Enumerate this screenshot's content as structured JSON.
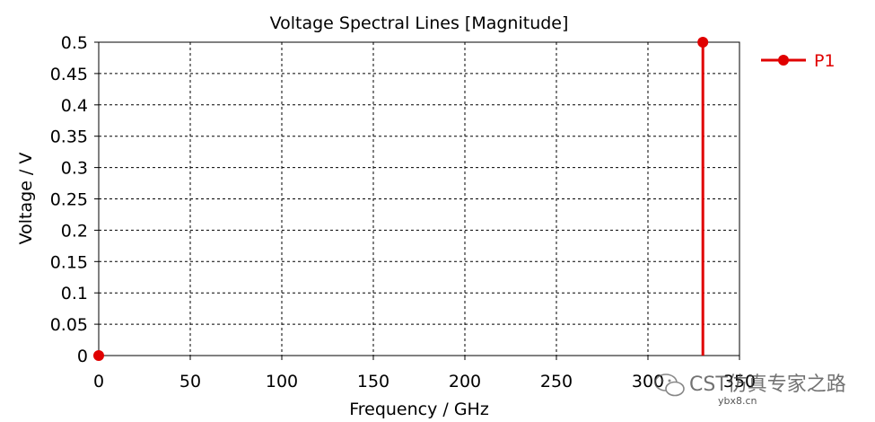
{
  "chart_data": {
    "type": "line",
    "title": "Voltage Spectral Lines [Magnitude]",
    "xlabel": "Frequency / GHz",
    "ylabel": "Voltage / V",
    "xlim": [
      0,
      350
    ],
    "ylim": [
      0,
      0.5
    ],
    "x_ticks": [
      "0",
      "50",
      "100",
      "150",
      "200",
      "250",
      "300",
      "350"
    ],
    "y_ticks": [
      "0",
      "0.05",
      "0.1",
      "0.15",
      "0.2",
      "0.25",
      "0.3",
      "0.35",
      "0.4",
      "0.45",
      "0.5"
    ],
    "grid": true,
    "legend_position": "top-right",
    "series": [
      {
        "name": "P1",
        "color": "#e00000",
        "points": [
          {
            "x": 0,
            "y": 0
          },
          {
            "x": 330,
            "y": 0.5
          }
        ]
      }
    ]
  },
  "watermark": {
    "text": "CST仿真专家之路",
    "url": "ybx8.cn",
    "icon": "wechat-icon"
  }
}
